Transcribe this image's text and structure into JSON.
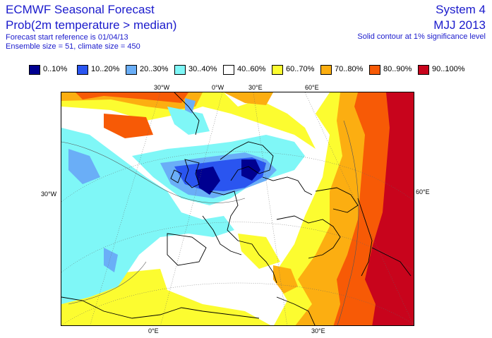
{
  "header": {
    "title": "ECMWF Seasonal Forecast",
    "subtitle": "Prob(2m temperature > median)",
    "start_reference": "Forecast start reference is 01/04/13",
    "ensemble": "Ensemble size = 51, climate size = 450",
    "system": "System 4",
    "period": "MJJ 2013",
    "contour_note": "Solid contour at 1% significance level"
  },
  "legend": [
    {
      "label": "0..10%",
      "color": "#000090"
    },
    {
      "label": "10..20%",
      "color": "#2a55f0"
    },
    {
      "label": "20..30%",
      "color": "#6aaef7"
    },
    {
      "label": "30..40%",
      "color": "#7ff7f7"
    },
    {
      "label": "40..60%",
      "color": "#ffffff"
    },
    {
      "label": "60..70%",
      "color": "#fcfc30"
    },
    {
      "label": "70..80%",
      "color": "#fcae11"
    },
    {
      "label": "80..90%",
      "color": "#f75a06"
    },
    {
      "label": "90..100%",
      "color": "#c8041c"
    }
  ],
  "gridlabels": {
    "top": [
      "30°W",
      "0°W",
      "30°E",
      "60°E"
    ],
    "left": "30°W",
    "right": "60°E",
    "bottom": [
      "0°E",
      "30°E"
    ]
  }
}
